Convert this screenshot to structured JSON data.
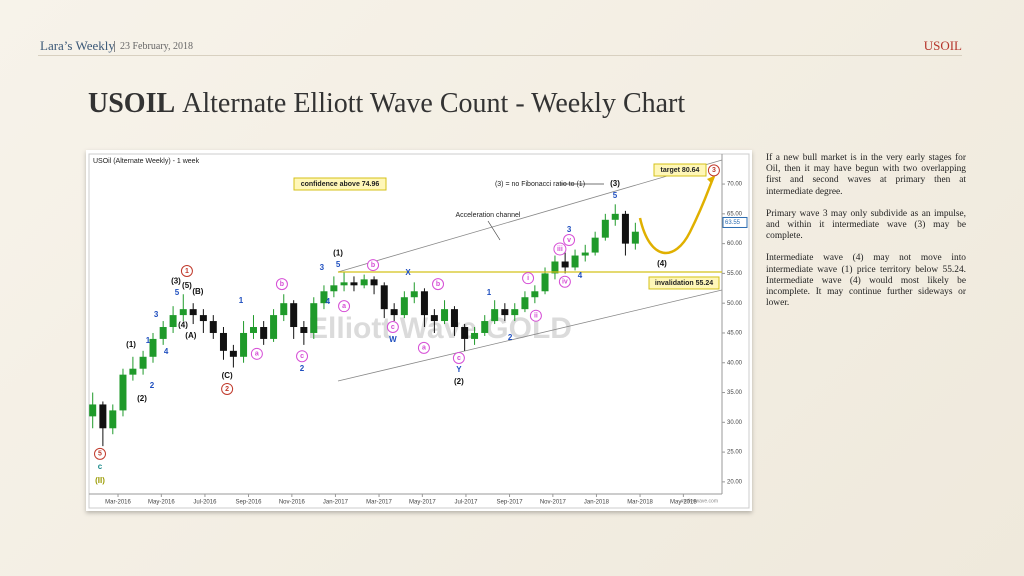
{
  "header": {
    "brand": "Lara’s Weekly",
    "date": "23 February, 2018",
    "topic": "USOIL"
  },
  "title": {
    "bold": "USOIL",
    "rest": "Alternate Elliott Wave Count - Weekly Chart"
  },
  "paragraphs": [
    "If a new bull market is in the very early stages for Oil, then it may have begun with two overlapping first and second waves at primary then at intermediate degree.",
    "Primary wave 3 may only subdivide as an impulse, and within it intermediate wave (3) may be complete.",
    "Intermediate wave (4) may not move into intermediate wave (1) price territory below 55.24. Intermediate wave (4) would most likely be incomplete. It may continue further sideways or lower."
  ],
  "chart_data": {
    "type": "candlestick",
    "title": "USOil (Alternate Weekly) - 1 week",
    "watermark": "Elliott Wave GOLD",
    "source": "motivewave.com",
    "up_color": "#1f9a2a",
    "down_color": "#111111",
    "x": [
      2016.07,
      2016.109,
      2016.147,
      2016.186,
      2016.224,
      2016.263,
      2016.301,
      2016.34,
      2016.378,
      2016.417,
      2016.455,
      2016.494,
      2016.532,
      2016.571,
      2016.609,
      2016.648,
      2016.686,
      2016.725,
      2016.763,
      2016.802,
      2016.84,
      2016.879,
      2016.917,
      2016.956,
      2016.994,
      2017.033,
      2017.071,
      2017.11,
      2017.148,
      2017.187,
      2017.225,
      2017.264,
      2017.302,
      2017.341,
      2017.379,
      2017.418,
      2017.456,
      2017.495,
      2017.533,
      2017.572,
      2017.61,
      2017.649,
      2017.687,
      2017.726,
      2017.764,
      2017.803,
      2017.841,
      2017.88,
      2017.918,
      2017.957,
      2017.995,
      2018.034,
      2018.072,
      2018.111,
      2018.149
    ],
    "open": [
      31,
      33,
      29,
      32,
      38,
      39,
      41,
      44,
      46,
      48,
      49,
      48,
      47,
      45,
      42,
      41,
      45,
      46,
      44,
      48,
      50,
      46,
      45,
      50,
      52,
      53,
      53.5,
      53,
      54,
      53,
      49,
      48,
      51,
      52,
      48,
      47,
      49,
      46,
      44,
      45,
      47,
      49,
      48,
      49,
      51,
      52,
      55,
      57,
      56,
      58,
      58.5,
      61,
      64,
      65,
      60
    ],
    "high": [
      35,
      33.5,
      33,
      39,
      41,
      42,
      45,
      47,
      49.5,
      51.5,
      50,
      49,
      48,
      46,
      43,
      47,
      48,
      47,
      49,
      51.5,
      50.5,
      47,
      51,
      53,
      54.5,
      55.2,
      54.5,
      54.8,
      54.5,
      53.5,
      50,
      52,
      53.5,
      52.5,
      49,
      50.5,
      49.5,
      46.5,
      46,
      48,
      50.5,
      50,
      50,
      52,
      53,
      56,
      58,
      58.5,
      59,
      59.8,
      62,
      65,
      66.6,
      65.5,
      63.5
    ],
    "low": [
      29,
      26,
      28,
      31,
      37,
      38,
      40,
      43,
      45,
      47,
      46.5,
      45,
      44,
      40.5,
      39.2,
      40,
      44,
      43,
      43.5,
      47,
      44,
      43,
      44,
      49,
      51,
      52,
      52,
      52.5,
      51.5,
      47.5,
      47,
      47.5,
      50,
      46,
      45,
      46.5,
      44.5,
      42,
      43,
      44.5,
      46.5,
      47,
      47,
      48.5,
      50,
      51.5,
      54,
      55,
      55.5,
      57,
      58,
      60.5,
      63,
      58,
      59
    ],
    "close": [
      33,
      29,
      32,
      38,
      39,
      41,
      44,
      46,
      48,
      49,
      48,
      47,
      45,
      42,
      41,
      45,
      46,
      44,
      48,
      50,
      46,
      45,
      50,
      52,
      53,
      53.5,
      53,
      54,
      53,
      49,
      48,
      51,
      52,
      48,
      47,
      49,
      46,
      44,
      45,
      47,
      49,
      48,
      49,
      51,
      52,
      55,
      57,
      56,
      58,
      58.5,
      61,
      64,
      65,
      60,
      62
    ],
    "last_price": 63.55,
    "xlim": [
      2016.052,
      2018.481
    ],
    "xticks": [
      {
        "value": 2016.167,
        "label": "Mar-2016"
      },
      {
        "value": 2016.333,
        "label": "May-2016"
      },
      {
        "value": 2016.5,
        "label": "Jul-2016"
      },
      {
        "value": 2016.667,
        "label": "Sep-2016"
      },
      {
        "value": 2016.833,
        "label": "Nov-2016"
      },
      {
        "value": 2017.0,
        "label": "Jan-2017"
      },
      {
        "value": 2017.167,
        "label": "Mar-2017"
      },
      {
        "value": 2017.333,
        "label": "May-2017"
      },
      {
        "value": 2017.5,
        "label": "Jul-2017"
      },
      {
        "value": 2017.667,
        "label": "Sep-2017"
      },
      {
        "value": 2017.833,
        "label": "Nov-2017"
      },
      {
        "value": 2018.0,
        "label": "Jan-2018"
      },
      {
        "value": 2018.167,
        "label": "Mar-2018"
      },
      {
        "value": 2018.333,
        "label": "May-2018"
      }
    ],
    "ylim": [
      18.3,
      73.2
    ],
    "yticks": [
      {
        "value": 20,
        "label": "20.00"
      },
      {
        "value": 25,
        "label": "25.00"
      },
      {
        "value": 30,
        "label": "30.00"
      },
      {
        "value": 35,
        "label": "35.00"
      },
      {
        "value": 40,
        "label": "40.00"
      },
      {
        "value": 45,
        "label": "45.00"
      },
      {
        "value": 50,
        "label": "50.00"
      },
      {
        "value": 55,
        "label": "55.00"
      },
      {
        "value": 60,
        "label": "60.00"
      },
      {
        "value": 65,
        "label": "65.00"
      },
      {
        "value": 70,
        "label": "70.00"
      }
    ],
    "levels": [
      {
        "value": 55.24,
        "label": "invalidation 55.24",
        "color": "#d4c21a"
      }
    ],
    "callouts": [
      "confidence above 74.96",
      "(3) = no Fibonacci ratio to (1)",
      "Acceleration channel",
      "target 80.64"
    ],
    "annotations": [
      {
        "text": "5",
        "x": 2016.098,
        "y": 24.7,
        "color": "#c0392b",
        "circled": true
      },
      {
        "text": "c",
        "x": 2016.098,
        "y": 22.5,
        "color": "#1a8a8a",
        "circled": false
      },
      {
        "text": "(II)",
        "x": 2016.098,
        "y": 20.2,
        "color": "#9a9a00",
        "circled": false
      },
      {
        "text": "(1)",
        "x": 2016.217,
        "y": 43,
        "color": "#111111",
        "circled": false
      },
      {
        "text": "1",
        "x": 2016.282,
        "y": 43.7,
        "color": "#1f4fbf",
        "circled": false
      },
      {
        "text": "2",
        "x": 2016.297,
        "y": 36.1,
        "color": "#1f4fbf",
        "circled": false
      },
      {
        "text": "(2)",
        "x": 2016.259,
        "y": 33.9,
        "color": "#111111",
        "circled": false
      },
      {
        "text": "3",
        "x": 2016.313,
        "y": 48,
        "color": "#1f4fbf",
        "circled": false
      },
      {
        "text": "4",
        "x": 2016.351,
        "y": 41.8,
        "color": "#1f4fbf",
        "circled": false
      },
      {
        "text": "5",
        "x": 2016.393,
        "y": 51.7,
        "color": "#1f4fbf",
        "circled": false
      },
      {
        "text": "(3)",
        "x": 2016.389,
        "y": 53.7,
        "color": "#111111",
        "circled": false
      },
      {
        "text": "(5)",
        "x": 2016.431,
        "y": 52.9,
        "color": "#111111",
        "circled": false
      },
      {
        "text": "1",
        "x": 2016.431,
        "y": 55.4,
        "color": "#c0392b",
        "circled": true
      },
      {
        "text": "(B)",
        "x": 2016.473,
        "y": 51.9,
        "color": "#111111",
        "circled": false
      },
      {
        "text": "(4)",
        "x": 2016.416,
        "y": 46.3,
        "color": "#111111",
        "circled": false
      },
      {
        "text": "(A)",
        "x": 2016.446,
        "y": 44.5,
        "color": "#111111",
        "circled": false
      },
      {
        "text": "(C)",
        "x": 2016.585,
        "y": 37.8,
        "color": "#111111",
        "circled": false
      },
      {
        "text": "2",
        "x": 2016.585,
        "y": 35.6,
        "color": "#c0392b",
        "circled": true
      },
      {
        "text": "1",
        "x": 2016.638,
        "y": 50.4,
        "color": "#1f4fbf",
        "circled": false
      },
      {
        "text": "a",
        "x": 2016.699,
        "y": 41.5,
        "color": "#d64fd6",
        "circled": true
      },
      {
        "text": "b",
        "x": 2016.795,
        "y": 53.2,
        "color": "#d64fd6",
        "circled": true
      },
      {
        "text": "c",
        "x": 2016.872,
        "y": 41.1,
        "color": "#d64fd6",
        "circled": true
      },
      {
        "text": "2",
        "x": 2016.872,
        "y": 39.0,
        "color": "#1f4fbf",
        "circled": false
      },
      {
        "text": "3",
        "x": 2016.948,
        "y": 55.9,
        "color": "#1f4fbf",
        "circled": false
      },
      {
        "text": "4",
        "x": 2016.971,
        "y": 50.2,
        "color": "#1f4fbf",
        "circled": false
      },
      {
        "text": "(1)",
        "x": 2017.01,
        "y": 58.4,
        "color": "#111111",
        "circled": false
      },
      {
        "text": "5",
        "x": 2017.01,
        "y": 56.4,
        "color": "#1f4fbf",
        "circled": false
      },
      {
        "text": "a",
        "x": 2017.033,
        "y": 49.5,
        "color": "#d64fd6",
        "circled": true
      },
      {
        "text": "b",
        "x": 2017.144,
        "y": 56.4,
        "color": "#d64fd6",
        "circled": true
      },
      {
        "text": "X",
        "x": 2017.278,
        "y": 55.1,
        "color": "#1f4fbf",
        "circled": false
      },
      {
        "text": "c",
        "x": 2017.22,
        "y": 46,
        "color": "#d64fd6",
        "circled": true
      },
      {
        "text": "W",
        "x": 2017.22,
        "y": 43.8,
        "color": "#1f4fbf",
        "circled": false
      },
      {
        "text": "a",
        "x": 2017.339,
        "y": 42.5,
        "color": "#d64fd6",
        "circled": true
      },
      {
        "text": "b",
        "x": 2017.393,
        "y": 53.2,
        "color": "#d64fd6",
        "circled": true
      },
      {
        "text": "c",
        "x": 2017.473,
        "y": 40.8,
        "color": "#d64fd6",
        "circled": true
      },
      {
        "text": "Y",
        "x": 2017.473,
        "y": 38.8,
        "color": "#1f4fbf",
        "circled": false
      },
      {
        "text": "(2)",
        "x": 2017.473,
        "y": 36.8,
        "color": "#111111",
        "circled": false
      },
      {
        "text": "1",
        "x": 2017.588,
        "y": 51.7,
        "color": "#1f4fbf",
        "circled": false
      },
      {
        "text": "2",
        "x": 2017.669,
        "y": 44.2,
        "color": "#1f4fbf",
        "circled": false
      },
      {
        "text": "i",
        "x": 2017.738,
        "y": 54.2,
        "color": "#d64fd6",
        "circled": true
      },
      {
        "text": "ii",
        "x": 2017.768,
        "y": 47.9,
        "color": "#d64fd6",
        "circled": true
      },
      {
        "text": "iii",
        "x": 2017.86,
        "y": 59.1,
        "color": "#d64fd6",
        "circled": true
      },
      {
        "text": "iv",
        "x": 2017.879,
        "y": 53.6,
        "color": "#d64fd6",
        "circled": true
      },
      {
        "text": "v",
        "x": 2017.895,
        "y": 60.6,
        "color": "#d64fd6",
        "circled": true
      },
      {
        "text": "3",
        "x": 2017.895,
        "y": 62.3,
        "color": "#1f4fbf",
        "circled": false
      },
      {
        "text": "4",
        "x": 2017.937,
        "y": 54.6,
        "color": "#1f4fbf",
        "circled": false
      },
      {
        "text": "5",
        "x": 2018.071,
        "y": 68,
        "color": "#1f4fbf",
        "circled": false
      },
      {
        "text": "(3)",
        "x": 2018.071,
        "y": 70,
        "color": "#111111",
        "circled": false
      },
      {
        "text": "(4)",
        "x": 2018.251,
        "y": 56.6,
        "color": "#111111",
        "circled": false
      },
      {
        "text": "3",
        "x": 2018.45,
        "y": 72.3,
        "color": "#c0392b",
        "circled": true
      }
    ]
  }
}
